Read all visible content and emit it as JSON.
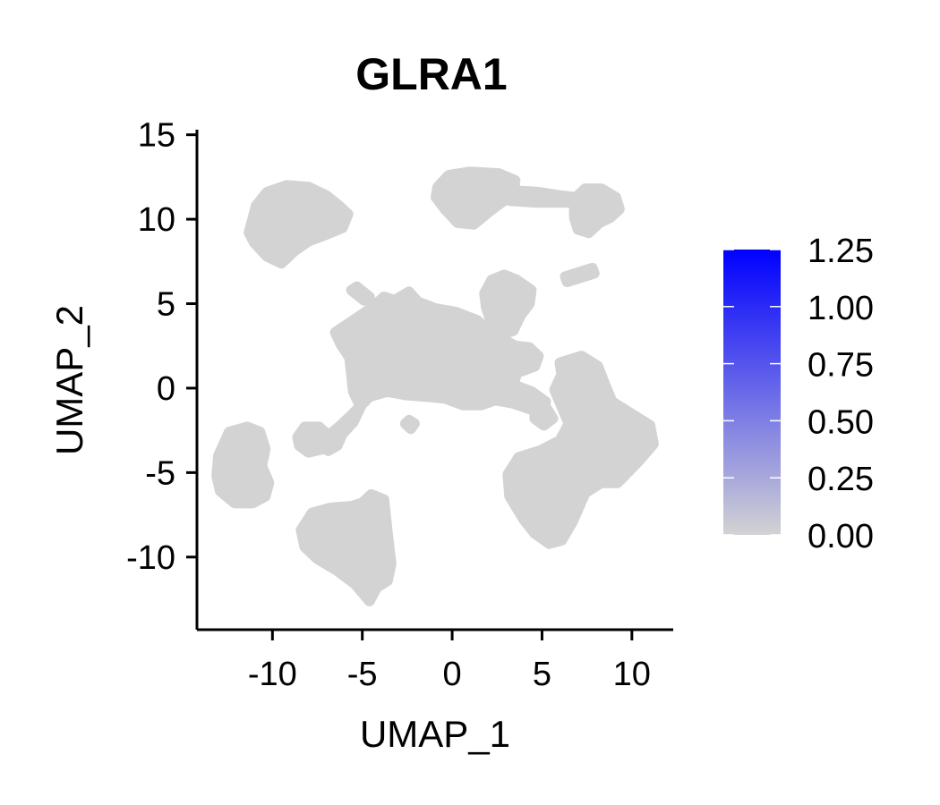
{
  "chart_data": {
    "type": "scatter",
    "title": "GLRA1",
    "xlabel": "UMAP_1",
    "ylabel": "UMAP_2",
    "xlim": [
      -14.2,
      12.3
    ],
    "ylim": [
      -14.3,
      15.3
    ],
    "x_ticks": [
      -10,
      -5,
      0,
      5,
      10
    ],
    "y_ticks": [
      -10,
      -5,
      0,
      5,
      10,
      15
    ],
    "x_tick_labels": [
      "-10",
      "-5",
      "0",
      "5",
      "10"
    ],
    "y_tick_labels": [
      "-10",
      "-5",
      "0",
      "5",
      "10",
      "15"
    ],
    "point_color": "#d3d3d3",
    "grid": false,
    "legend": {
      "type": "colorbar",
      "placement": "right",
      "min": 0.0,
      "max": 1.25,
      "low_color": "#d3d3d3",
      "high_color": "#0000ff",
      "tick_values": [
        0.0,
        0.25,
        0.5,
        0.75,
        1.0,
        1.25
      ],
      "tick_labels": [
        "0.00",
        "0.25",
        "0.50",
        "0.75",
        "1.00",
        "1.25"
      ]
    },
    "clusters": [
      {
        "name": "cluster-top-left",
        "outline": [
          [
            -11.2,
            9.6
          ],
          [
            -10.9,
            10.8
          ],
          [
            -10.3,
            11.6
          ],
          [
            -9.2,
            12.0
          ],
          [
            -8.0,
            11.9
          ],
          [
            -7.0,
            11.4
          ],
          [
            -6.3,
            10.8
          ],
          [
            -5.8,
            10.3
          ],
          [
            -6.1,
            9.5
          ],
          [
            -7.0,
            9.1
          ],
          [
            -8.0,
            8.7
          ],
          [
            -8.8,
            8.1
          ],
          [
            -9.5,
            7.4
          ],
          [
            -10.3,
            7.8
          ],
          [
            -11.0,
            8.6
          ],
          [
            -11.3,
            9.2
          ]
        ]
      },
      {
        "name": "cluster-top-right-main",
        "outline": [
          [
            -0.8,
            11.9
          ],
          [
            -0.2,
            12.6
          ],
          [
            1.0,
            12.8
          ],
          [
            2.6,
            12.7
          ],
          [
            3.5,
            12.3
          ],
          [
            3.4,
            11.4
          ],
          [
            3.0,
            11.2
          ],
          [
            2.0,
            10.4
          ],
          [
            1.2,
            9.7
          ],
          [
            0.3,
            9.8
          ],
          [
            -0.4,
            10.6
          ],
          [
            -0.9,
            11.3
          ]
        ]
      },
      {
        "name": "cluster-top-right-bridge",
        "outline": [
          [
            3.2,
            11.7
          ],
          [
            4.8,
            11.6
          ],
          [
            6.0,
            11.4
          ],
          [
            6.8,
            11.3
          ],
          [
            6.8,
            11.0
          ],
          [
            5.8,
            11.0
          ],
          [
            4.6,
            11.0
          ],
          [
            3.2,
            11.1
          ]
        ]
      },
      {
        "name": "cluster-top-right-tip",
        "outline": [
          [
            6.8,
            11.2
          ],
          [
            7.4,
            11.8
          ],
          [
            8.3,
            11.8
          ],
          [
            9.1,
            11.3
          ],
          [
            9.3,
            10.6
          ],
          [
            8.8,
            10.1
          ],
          [
            8.2,
            9.8
          ],
          [
            7.6,
            9.2
          ],
          [
            7.0,
            9.4
          ],
          [
            6.8,
            10.1
          ]
        ]
      },
      {
        "name": "cluster-thin-diagonal",
        "outline": [
          [
            6.3,
            6.6
          ],
          [
            7.8,
            7.1
          ],
          [
            7.9,
            6.8
          ],
          [
            6.4,
            6.3
          ]
        ]
      },
      {
        "name": "cluster-upper-mid",
        "outline": [
          [
            1.8,
            5.6
          ],
          [
            2.2,
            6.4
          ],
          [
            2.9,
            6.7
          ],
          [
            3.6,
            6.4
          ],
          [
            4.4,
            5.8
          ],
          [
            4.3,
            5.0
          ],
          [
            3.8,
            4.3
          ],
          [
            3.4,
            3.4
          ],
          [
            2.8,
            3.2
          ],
          [
            2.2,
            3.8
          ],
          [
            1.9,
            4.8
          ]
        ]
      },
      {
        "name": "cluster-central",
        "outline": [
          [
            -6.5,
            3.3
          ],
          [
            -5.8,
            3.8
          ],
          [
            -4.4,
            4.8
          ],
          [
            -3.8,
            5.4
          ],
          [
            -3.2,
            5.2
          ],
          [
            -2.4,
            5.7
          ],
          [
            -1.9,
            5.1
          ],
          [
            -0.9,
            4.7
          ],
          [
            0.2,
            4.5
          ],
          [
            1.4,
            4.0
          ],
          [
            2.1,
            3.3
          ],
          [
            2.8,
            2.9
          ],
          [
            3.5,
            2.5
          ],
          [
            4.3,
            2.4
          ],
          [
            4.8,
            1.9
          ],
          [
            4.6,
            1.3
          ],
          [
            3.6,
            0.9
          ],
          [
            3.4,
            0.2
          ],
          [
            4.4,
            -0.2
          ],
          [
            5.2,
            -0.8
          ],
          [
            4.5,
            -1.3
          ],
          [
            3.4,
            -0.9
          ],
          [
            2.4,
            -0.7
          ],
          [
            1.6,
            -1.0
          ],
          [
            0.6,
            -1.0
          ],
          [
            -0.4,
            -0.6
          ],
          [
            -1.4,
            -0.5
          ],
          [
            -2.6,
            -0.4
          ],
          [
            -3.6,
            -0.2
          ],
          [
            -4.6,
            -0.5
          ],
          [
            -5.6,
            -1.6
          ],
          [
            -6.3,
            -2.3
          ],
          [
            -7.2,
            -3.1
          ],
          [
            -6.9,
            -3.7
          ],
          [
            -6.4,
            -3.4
          ],
          [
            -6.1,
            -2.7
          ],
          [
            -5.5,
            -2.0
          ],
          [
            -5.1,
            -1.1
          ],
          [
            -5.5,
            -0.2
          ],
          [
            -5.6,
            0.8
          ],
          [
            -5.7,
            1.8
          ],
          [
            -6.2,
            2.6
          ]
        ]
      },
      {
        "name": "cluster-arm",
        "outline": [
          [
            -5.6,
            5.8
          ],
          [
            -5.3,
            6.0
          ],
          [
            -4.6,
            5.4
          ],
          [
            -4.9,
            5.2
          ]
        ]
      },
      {
        "name": "cluster-right-large",
        "outline": [
          [
            6.0,
            1.5
          ],
          [
            7.2,
            1.9
          ],
          [
            8.1,
            1.3
          ],
          [
            8.5,
            0.2
          ],
          [
            8.9,
            -0.8
          ],
          [
            10.1,
            -1.6
          ],
          [
            11.0,
            -2.2
          ],
          [
            11.2,
            -3.3
          ],
          [
            10.4,
            -4.3
          ],
          [
            9.2,
            -5.6
          ],
          [
            8.3,
            -5.6
          ],
          [
            7.4,
            -6.2
          ],
          [
            6.7,
            -7.9
          ],
          [
            6.1,
            -9.0
          ],
          [
            5.4,
            -9.2
          ],
          [
            4.6,
            -8.6
          ],
          [
            4.0,
            -7.8
          ],
          [
            3.2,
            -6.4
          ],
          [
            3.1,
            -5.1
          ],
          [
            3.7,
            -4.1
          ],
          [
            4.9,
            -3.7
          ],
          [
            6.0,
            -3.1
          ],
          [
            6.5,
            -2.1
          ],
          [
            6.1,
            -1.1
          ],
          [
            5.7,
            -0.1
          ],
          [
            6.1,
            0.8
          ]
        ]
      },
      {
        "name": "cluster-left",
        "outline": [
          [
            -13.0,
            -4.0
          ],
          [
            -12.4,
            -2.6
          ],
          [
            -11.4,
            -2.3
          ],
          [
            -10.7,
            -2.6
          ],
          [
            -10.4,
            -3.6
          ],
          [
            -10.6,
            -4.6
          ],
          [
            -10.2,
            -5.6
          ],
          [
            -10.4,
            -6.4
          ],
          [
            -11.1,
            -6.8
          ],
          [
            -12.1,
            -6.8
          ],
          [
            -12.9,
            -6.1
          ],
          [
            -13.1,
            -5.2
          ]
        ]
      },
      {
        "name": "cluster-bottom",
        "outline": [
          [
            -8.4,
            -8.4
          ],
          [
            -7.8,
            -7.4
          ],
          [
            -6.8,
            -7.1
          ],
          [
            -5.6,
            -7.0
          ],
          [
            -5.0,
            -6.8
          ],
          [
            -4.5,
            -6.3
          ],
          [
            -3.8,
            -6.6
          ],
          [
            -3.6,
            -8.6
          ],
          [
            -3.4,
            -10.4
          ],
          [
            -3.6,
            -11.4
          ],
          [
            -4.2,
            -11.8
          ],
          [
            -4.6,
            -12.6
          ],
          [
            -5.4,
            -11.6
          ],
          [
            -6.4,
            -10.8
          ],
          [
            -7.5,
            -10.1
          ],
          [
            -8.2,
            -9.4
          ]
        ]
      },
      {
        "name": "cluster-small-left-mid",
        "outline": [
          [
            -8.6,
            -2.9
          ],
          [
            -8.2,
            -2.3
          ],
          [
            -7.4,
            -2.3
          ],
          [
            -6.9,
            -2.8
          ],
          [
            -7.2,
            -3.6
          ],
          [
            -8.0,
            -3.8
          ],
          [
            -8.5,
            -3.4
          ]
        ]
      },
      {
        "name": "cluster-small-dot",
        "outline": [
          [
            -2.6,
            -2.1
          ],
          [
            -2.4,
            -1.9
          ],
          [
            -2.1,
            -2.1
          ],
          [
            -2.3,
            -2.4
          ]
        ]
      },
      {
        "name": "cluster-small-right",
        "outline": [
          [
            4.6,
            -1.3
          ],
          [
            5.2,
            -1.1
          ],
          [
            5.6,
            -1.8
          ],
          [
            5.1,
            -2.2
          ],
          [
            4.6,
            -1.8
          ]
        ]
      }
    ]
  }
}
